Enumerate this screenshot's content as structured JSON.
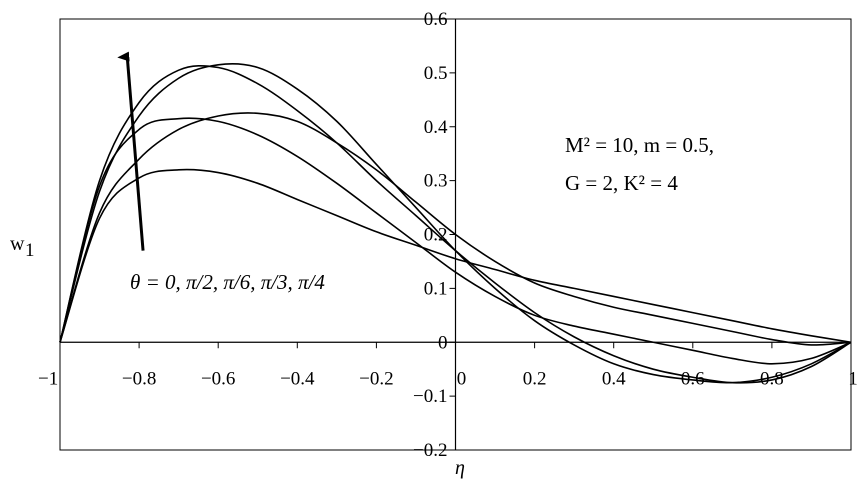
{
  "chart_data": {
    "type": "line",
    "xlabel": "η",
    "ylabel": "w",
    "ylabel_sub": "1",
    "xlim": [
      -1,
      1
    ],
    "ylim": [
      -0.2,
      0.6
    ],
    "x_ticks": [
      {
        "v": -1,
        "label": "−1"
      },
      {
        "v": -0.8,
        "label": "−0.8"
      },
      {
        "v": -0.6,
        "label": "−0.6"
      },
      {
        "v": -0.4,
        "label": "−0.4"
      },
      {
        "v": -0.2,
        "label": "−0.2"
      },
      {
        "v": 0,
        "label": "0"
      },
      {
        "v": 0.2,
        "label": "0.2"
      },
      {
        "v": 0.4,
        "label": "0.4"
      },
      {
        "v": 0.6,
        "label": "0.6"
      },
      {
        "v": 0.8,
        "label": "0.8"
      },
      {
        "v": 1,
        "label": "1"
      }
    ],
    "y_ticks": [
      {
        "v": -0.2,
        "label": "−0.2"
      },
      {
        "v": -0.1,
        "label": "−0.1"
      },
      {
        "v": 0,
        "label": "0"
      },
      {
        "v": 0.1,
        "label": "0.1"
      },
      {
        "v": 0.2,
        "label": "0.2"
      },
      {
        "v": 0.3,
        "label": "0.3"
      },
      {
        "v": 0.4,
        "label": "0.4"
      },
      {
        "v": 0.5,
        "label": "0.5"
      },
      {
        "v": 0.6,
        "label": "0.6"
      }
    ],
    "grid": false,
    "series": [
      {
        "x": [
          -1,
          -0.9,
          -0.8,
          -0.7,
          -0.6,
          -0.5,
          -0.4,
          -0.3,
          -0.2,
          -0.1,
          0,
          0.1,
          0.2,
          0.3,
          0.4,
          0.5,
          0.6,
          0.7,
          0.8,
          0.9,
          1
        ],
        "values": [
          0,
          0.23,
          0.305,
          0.32,
          0.315,
          0.295,
          0.265,
          0.235,
          0.205,
          0.18,
          0.155,
          0.135,
          0.115,
          0.1,
          0.085,
          0.07,
          0.055,
          0.04,
          0.025,
          0.012,
          0
        ]
      },
      {
        "x": [
          -1,
          -0.9,
          -0.8,
          -0.7,
          -0.6,
          -0.5,
          -0.4,
          -0.3,
          -0.2,
          -0.1,
          0,
          0.1,
          0.2,
          0.3,
          0.4,
          0.5,
          0.6,
          0.7,
          0.8,
          0.9,
          1
        ],
        "values": [
          0,
          0.24,
          0.34,
          0.395,
          0.42,
          0.425,
          0.41,
          0.37,
          0.32,
          0.26,
          0.2,
          0.15,
          0.11,
          0.085,
          0.065,
          0.05,
          0.035,
          0.02,
          0.005,
          -0.005,
          0
        ]
      },
      {
        "x": [
          -1,
          -0.9,
          -0.8,
          -0.7,
          -0.6,
          -0.5,
          -0.4,
          -0.3,
          -0.2,
          -0.1,
          0,
          0.1,
          0.2,
          0.3,
          0.4,
          0.5,
          0.6,
          0.7,
          0.8,
          0.9,
          1
        ],
        "values": [
          0,
          0.29,
          0.395,
          0.415,
          0.41,
          0.385,
          0.345,
          0.295,
          0.24,
          0.185,
          0.13,
          0.085,
          0.05,
          0.03,
          0.015,
          0.0,
          -0.015,
          -0.03,
          -0.04,
          -0.03,
          0
        ]
      },
      {
        "x": [
          -1,
          -0.9,
          -0.8,
          -0.7,
          -0.6,
          -0.5,
          -0.4,
          -0.3,
          -0.2,
          -0.1,
          0,
          0.1,
          0.2,
          0.3,
          0.4,
          0.5,
          0.6,
          0.7,
          0.8,
          0.9,
          1
        ],
        "values": [
          0,
          0.28,
          0.42,
          0.49,
          0.515,
          0.51,
          0.47,
          0.41,
          0.33,
          0.25,
          0.17,
          0.1,
          0.04,
          -0.005,
          -0.04,
          -0.06,
          -0.07,
          -0.075,
          -0.065,
          -0.04,
          0
        ]
      },
      {
        "x": [
          -1,
          -0.9,
          -0.8,
          -0.7,
          -0.6,
          -0.5,
          -0.4,
          -0.3,
          -0.2,
          -0.1,
          0,
          0.1,
          0.2,
          0.3,
          0.4,
          0.5,
          0.6,
          0.7,
          0.8,
          0.9,
          1
        ],
        "values": [
          0,
          0.3,
          0.445,
          0.505,
          0.51,
          0.48,
          0.43,
          0.37,
          0.3,
          0.235,
          0.17,
          0.11,
          0.055,
          0.01,
          -0.025,
          -0.05,
          -0.065,
          -0.075,
          -0.07,
          -0.045,
          0
        ]
      }
    ],
    "annotations": {
      "params_line1": "M² = 10, m = 0.5,",
      "params_line2": "G = 2, K² = 4",
      "theta_label": "θ = 0, π/2,  π/6,  π/3,  π/4"
    },
    "arrow": {
      "from": [
        -0.79,
        0.17
      ],
      "to": [
        -0.83,
        0.53
      ]
    }
  }
}
